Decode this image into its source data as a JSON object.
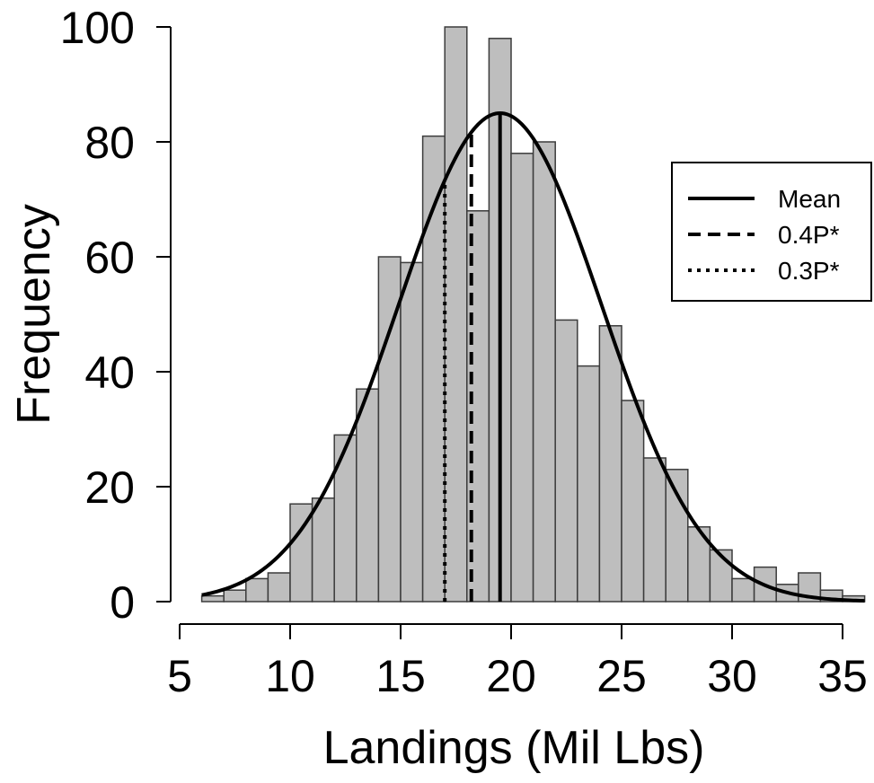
{
  "chart_data": {
    "type": "bar",
    "subtype": "histogram with fitted normal curve and reference lines",
    "xlabel": "Landings (Mil Lbs)",
    "ylabel": "Frequency",
    "xlim": [
      5,
      36
    ],
    "ylim": [
      0,
      100
    ],
    "x_ticks": [
      "5",
      "10",
      "15",
      "20",
      "25",
      "30",
      "35"
    ],
    "y_ticks": [
      "0",
      "20",
      "40",
      "60",
      "80",
      "100"
    ],
    "bin_width": 1,
    "bins": [
      {
        "start": 6,
        "end": 7,
        "count": 1
      },
      {
        "start": 7,
        "end": 8,
        "count": 2
      },
      {
        "start": 8,
        "end": 9,
        "count": 4
      },
      {
        "start": 9,
        "end": 10,
        "count": 5
      },
      {
        "start": 10,
        "end": 11,
        "count": 17
      },
      {
        "start": 11,
        "end": 12,
        "count": 18
      },
      {
        "start": 12,
        "end": 13,
        "count": 29
      },
      {
        "start": 13,
        "end": 14,
        "count": 37
      },
      {
        "start": 14,
        "end": 15,
        "count": 60
      },
      {
        "start": 15,
        "end": 16,
        "count": 59
      },
      {
        "start": 16,
        "end": 17,
        "count": 81
      },
      {
        "start": 17,
        "end": 18,
        "count": 100
      },
      {
        "start": 18,
        "end": 19,
        "count": 68
      },
      {
        "start": 19,
        "end": 20,
        "count": 98
      },
      {
        "start": 20,
        "end": 21,
        "count": 78
      },
      {
        "start": 21,
        "end": 22,
        "count": 80
      },
      {
        "start": 22,
        "end": 23,
        "count": 49
      },
      {
        "start": 23,
        "end": 24,
        "count": 41
      },
      {
        "start": 24,
        "end": 25,
        "count": 48
      },
      {
        "start": 25,
        "end": 26,
        "count": 35
      },
      {
        "start": 26,
        "end": 27,
        "count": 25
      },
      {
        "start": 27,
        "end": 28,
        "count": 23
      },
      {
        "start": 28,
        "end": 29,
        "count": 13
      },
      {
        "start": 29,
        "end": 30,
        "count": 9
      },
      {
        "start": 30,
        "end": 31,
        "count": 4
      },
      {
        "start": 31,
        "end": 32,
        "count": 6
      },
      {
        "start": 32,
        "end": 33,
        "count": 3
      },
      {
        "start": 33,
        "end": 34,
        "count": 5
      },
      {
        "start": 34,
        "end": 35,
        "count": 2
      },
      {
        "start": 35,
        "end": 36,
        "count": 1
      }
    ],
    "bar_fill": "#bebebe",
    "bar_stroke": "#3c3c3c",
    "curve": {
      "type": "normal",
      "mean": 19.5,
      "sd": 4.6,
      "peak": 85,
      "x_range": [
        6,
        36
      ],
      "color": "#000000"
    },
    "reference_lines": [
      {
        "label": "Mean",
        "x": 19.5,
        "style": "solid"
      },
      {
        "label": "0.4P*",
        "x": 18.2,
        "style": "dashed"
      },
      {
        "label": "0.3P*",
        "x": 17.0,
        "style": "dotted"
      }
    ],
    "legend": {
      "position": "top-right",
      "entries": [
        {
          "label": "Mean",
          "style": "solid"
        },
        {
          "label": "0.4P*",
          "style": "dashed"
        },
        {
          "label": "0.3P*",
          "style": "dotted"
        }
      ]
    }
  }
}
